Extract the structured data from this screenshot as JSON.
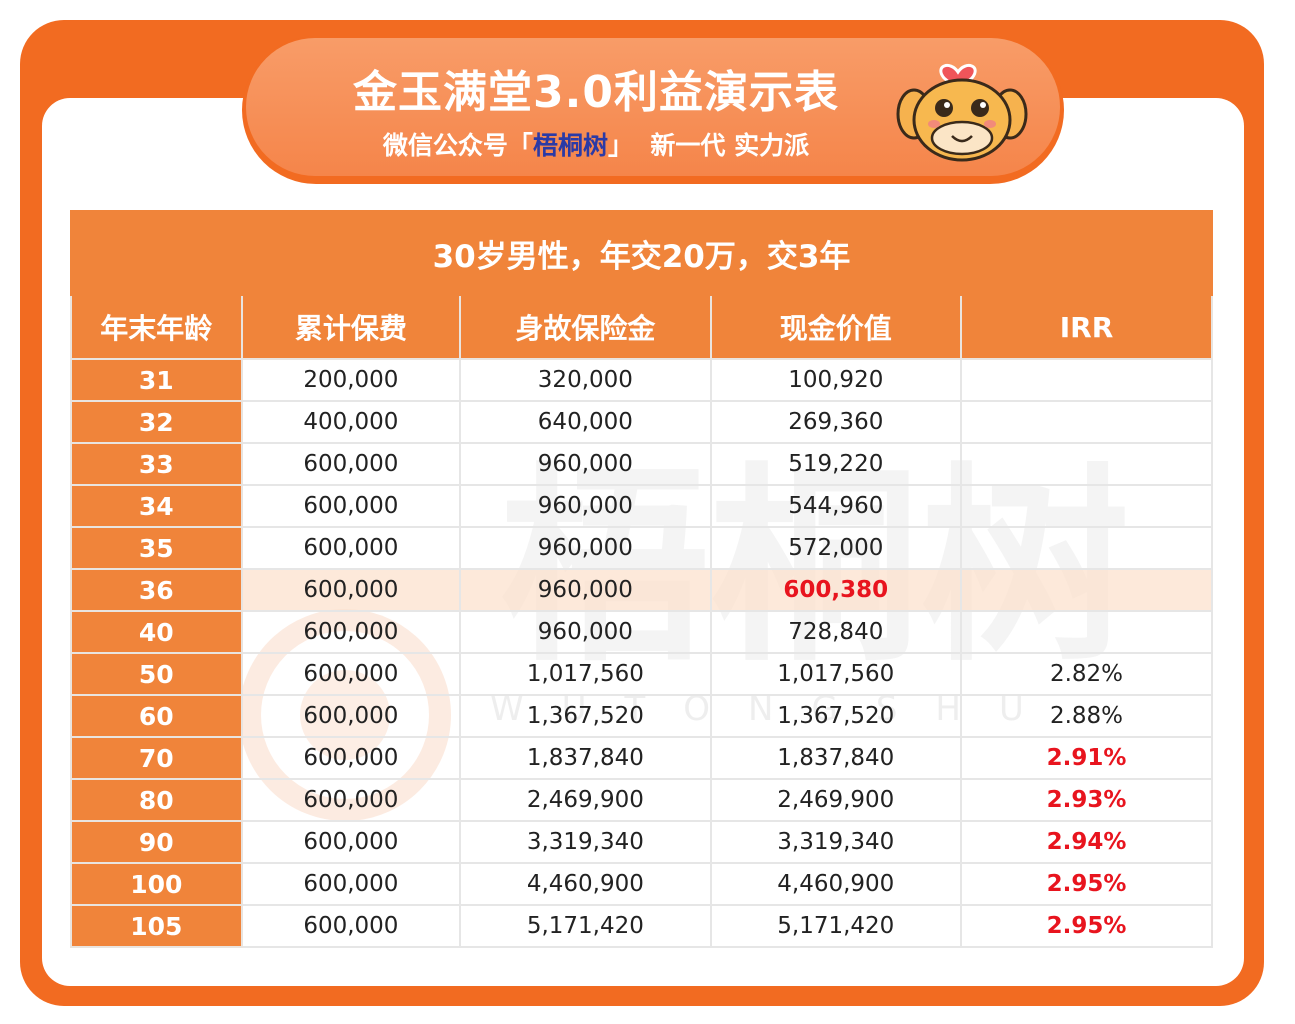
{
  "header": {
    "title": "金玉满堂3.0利益演示表",
    "subtitle_prefix": "微信公众号「",
    "brand": "梧桐树",
    "subtitle_suffix": "」  新一代 实力派"
  },
  "table": {
    "caption": "30岁男性，年交20万，交3年",
    "columns": [
      "年末年龄",
      "累计保费",
      "身故保险金",
      "现金价值",
      "IRR"
    ],
    "rows": [
      {
        "age": "31",
        "premium": "200,000",
        "death": "320,000",
        "cash": "100,920",
        "irr": ""
      },
      {
        "age": "32",
        "premium": "400,000",
        "death": "640,000",
        "cash": "269,360",
        "irr": ""
      },
      {
        "age": "33",
        "premium": "600,000",
        "death": "960,000",
        "cash": "519,220",
        "irr": ""
      },
      {
        "age": "34",
        "premium": "600,000",
        "death": "960,000",
        "cash": "544,960",
        "irr": ""
      },
      {
        "age": "35",
        "premium": "600,000",
        "death": "960,000",
        "cash": "572,000",
        "irr": ""
      },
      {
        "age": "36",
        "premium": "600,000",
        "death": "960,000",
        "cash": "600,380",
        "irr": ""
      },
      {
        "age": "40",
        "premium": "600,000",
        "death": "960,000",
        "cash": "728,840",
        "irr": ""
      },
      {
        "age": "50",
        "premium": "600,000",
        "death": "1,017,560",
        "cash": "1,017,560",
        "irr": "2.82%"
      },
      {
        "age": "60",
        "premium": "600,000",
        "death": "1,367,520",
        "cash": "1,367,520",
        "irr": "2.88%"
      },
      {
        "age": "70",
        "premium": "600,000",
        "death": "1,837,840",
        "cash": "1,837,840",
        "irr": "2.91%"
      },
      {
        "age": "80",
        "premium": "600,000",
        "death": "2,469,900",
        "cash": "2,469,900",
        "irr": "2.93%"
      },
      {
        "age": "90",
        "premium": "600,000",
        "death": "3,319,340",
        "cash": "3,319,340",
        "irr": "2.94%"
      },
      {
        "age": "100",
        "premium": "600,000",
        "death": "4,460,900",
        "cash": "4,460,900",
        "irr": "2.95%"
      },
      {
        "age": "105",
        "premium": "600,000",
        "death": "5,171,420",
        "cash": "5,171,420",
        "irr": "2.95%"
      }
    ]
  },
  "watermark": {
    "text": "梧桐树",
    "latin": "WUTONGSHU"
  },
  "colors": {
    "frame": "#f26b21",
    "header_fill": "#f0843a",
    "highlight": "#e8141e",
    "brand": "#2b3aa6"
  }
}
